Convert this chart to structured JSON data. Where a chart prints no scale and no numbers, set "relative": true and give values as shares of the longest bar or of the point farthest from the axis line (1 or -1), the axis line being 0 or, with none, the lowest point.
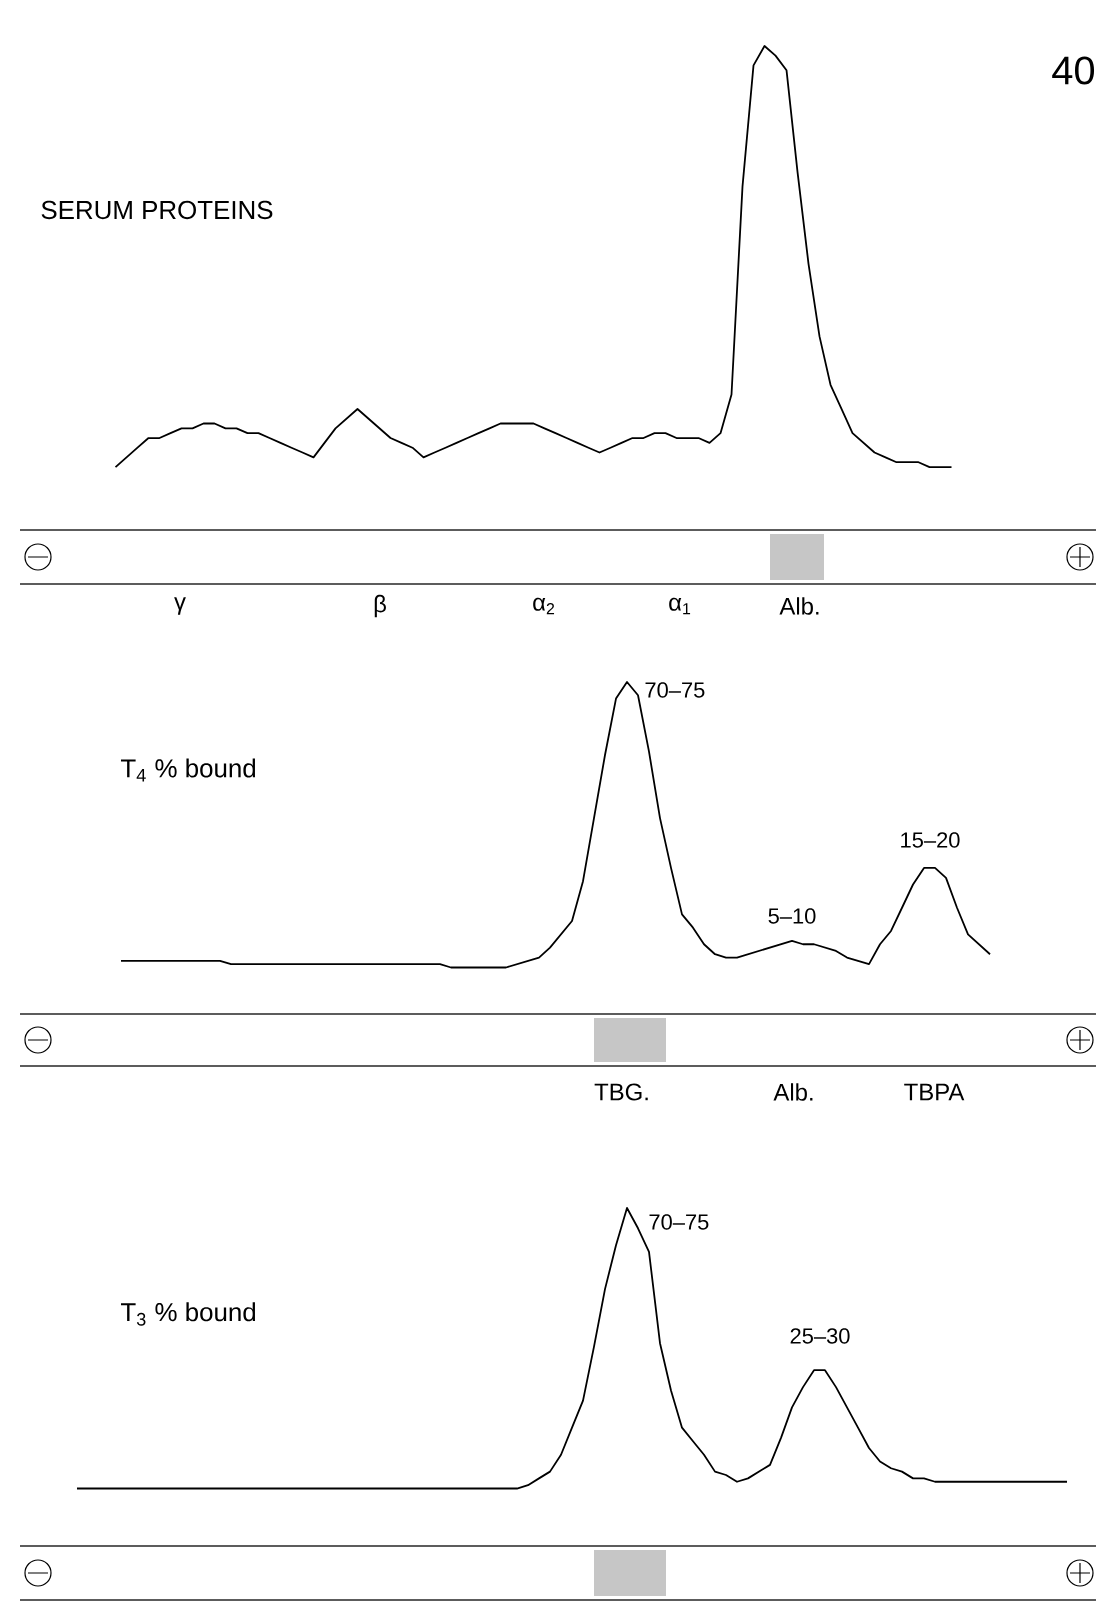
{
  "chart_data": [
    {
      "type": "line",
      "title": "SERUM PROTEINS",
      "relative": true,
      "categories": [
        null,
        null,
        null,
        null,
        null,
        null,
        null,
        null,
        null,
        null,
        null,
        null,
        null,
        null,
        null,
        null,
        null,
        null,
        null,
        null,
        null,
        null,
        null,
        null,
        null,
        null,
        null,
        null,
        null,
        null,
        null,
        null,
        null,
        null,
        null,
        null,
        null,
        null,
        null,
        null,
        null,
        null,
        null,
        null,
        null,
        null,
        null,
        null,
        null,
        null,
        null,
        null,
        null,
        null,
        null,
        null,
        null,
        null,
        null,
        null,
        null,
        null,
        null,
        null,
        null,
        null,
        null,
        null,
        null,
        null,
        null,
        null,
        null,
        null,
        null,
        null,
        null
      ],
      "series": [
        {
          "color": "#000000",
          "values": [
            0.13,
            0.15,
            0.17,
            0.19,
            0.19,
            0.2,
            0.21,
            0.21,
            0.22,
            0.22,
            0.21,
            0.21,
            0.2,
            0.2,
            0.19,
            0.18,
            0.17,
            0.16,
            0.15,
            0.18,
            0.21,
            0.23,
            0.25,
            0.23,
            0.21,
            0.19,
            0.18,
            0.17,
            0.15,
            0.16,
            0.17,
            0.18,
            0.19,
            0.2,
            0.21,
            0.22,
            0.22,
            0.22,
            0.22,
            0.21,
            0.2,
            0.19,
            0.18,
            0.17,
            0.16,
            0.17,
            0.18,
            0.19,
            0.19,
            0.2,
            0.2,
            0.19,
            0.19,
            0.19,
            0.18,
            0.2,
            0.28,
            0.71,
            0.96,
            1,
            0.98,
            0.95,
            0.74,
            0.55,
            0.4,
            0.3,
            0.25,
            0.2,
            0.18,
            0.16,
            0.15,
            0.14,
            0.14,
            0.14,
            0.13,
            0.13,
            0.13
          ]
        }
      ],
      "annotations": [
        "40",
        "γ",
        "β",
        "α$_{2}$",
        "α$_{1}$",
        "Alb."
      ]
    },
    {
      "type": "line",
      "title": "T$_{4}$  % bound",
      "relative": true,
      "categories": [
        null,
        null,
        null,
        null,
        null,
        null,
        null,
        null,
        null,
        null,
        null,
        null,
        null,
        null,
        null,
        null,
        null,
        null,
        null,
        null,
        null,
        null,
        null,
        null,
        null,
        null,
        null,
        null,
        null,
        null,
        null,
        null,
        null,
        null,
        null,
        null,
        null,
        null,
        null,
        null,
        null,
        null,
        null,
        null,
        null,
        null,
        null,
        null,
        null,
        null,
        null,
        null,
        null,
        null,
        null,
        null,
        null,
        null,
        null,
        null,
        null,
        null,
        null,
        null,
        null,
        null,
        null,
        null,
        null,
        null,
        null,
        null,
        null,
        null,
        null,
        null,
        null,
        null,
        null,
        null
      ],
      "series": [
        {
          "color": "#000000",
          "values": [
            0.16,
            0.16,
            0.16,
            0.16,
            0.16,
            0.16,
            0.16,
            0.16,
            0.16,
            0.16,
            0.15,
            0.15,
            0.15,
            0.15,
            0.15,
            0.15,
            0.15,
            0.15,
            0.15,
            0.15,
            0.15,
            0.15,
            0.15,
            0.15,
            0.15,
            0.15,
            0.15,
            0.15,
            0.15,
            0.15,
            0.14,
            0.14,
            0.14,
            0.14,
            0.14,
            0.14,
            0.15,
            0.16,
            0.17,
            0.2,
            0.24,
            0.28,
            0.4,
            0.59,
            0.78,
            0.95,
            1,
            0.96,
            0.79,
            0.59,
            0.44,
            0.3,
            0.26,
            0.21,
            0.18,
            0.17,
            0.17,
            0.18,
            0.19,
            0.2,
            0.21,
            0.22,
            0.21,
            0.21,
            0.2,
            0.19,
            0.17,
            0.16,
            0.15,
            0.21,
            0.25,
            0.32,
            0.39,
            0.44,
            0.44,
            0.41,
            0.32,
            0.24,
            0.21,
            0.18
          ]
        }
      ],
      "annotations": [
        "70–75",
        "5–10",
        "15–20",
        "TBG.",
        "Alb.",
        "TBPA"
      ]
    },
    {
      "type": "line",
      "title": "T$_{3}$  % bound",
      "relative": true,
      "categories": [
        null,
        null,
        null,
        null,
        null,
        null,
        null,
        null,
        null,
        null,
        null,
        null,
        null,
        null,
        null,
        null,
        null,
        null,
        null,
        null,
        null,
        null,
        null,
        null,
        null,
        null,
        null,
        null,
        null,
        null,
        null,
        null,
        null,
        null,
        null,
        null,
        null,
        null,
        null,
        null,
        null,
        null,
        null,
        null,
        null,
        null,
        null,
        null,
        null,
        null,
        null,
        null,
        null,
        null,
        null,
        null,
        null,
        null,
        null,
        null,
        null,
        null,
        null,
        null,
        null,
        null,
        null,
        null,
        null,
        null,
        null,
        null,
        null,
        null,
        null,
        null,
        null,
        null,
        null,
        null,
        null,
        null,
        null,
        null,
        null,
        null,
        null,
        null,
        null,
        null,
        null
      ],
      "series": [
        {
          "color": "#000000",
          "values": [
            0.17,
            0.17,
            0.17,
            0.17,
            0.17,
            0.17,
            0.17,
            0.17,
            0.17,
            0.17,
            0.17,
            0.17,
            0.17,
            0.17,
            0.17,
            0.17,
            0.17,
            0.17,
            0.17,
            0.17,
            0.17,
            0.17,
            0.17,
            0.17,
            0.17,
            0.17,
            0.17,
            0.17,
            0.17,
            0.17,
            0.17,
            0.17,
            0.17,
            0.17,
            0.17,
            0.17,
            0.17,
            0.17,
            0.17,
            0.17,
            0.17,
            0.18,
            0.2,
            0.22,
            0.27,
            0.35,
            0.43,
            0.59,
            0.76,
            0.89,
            1,
            0.94,
            0.87,
            0.6,
            0.46,
            0.35,
            0.31,
            0.27,
            0.22,
            0.21,
            0.19,
            0.2,
            0.22,
            0.24,
            0.32,
            0.41,
            0.47,
            0.52,
            0.52,
            0.47,
            0.41,
            0.35,
            0.29,
            0.25,
            0.23,
            0.22,
            0.2,
            0.2,
            0.19,
            0.19,
            0.19,
            0.19,
            0.19,
            0.19,
            0.19,
            0.19,
            0.19,
            0.19,
            0.19,
            0.19,
            0.19
          ]
        }
      ],
      "annotations": [
        "70–75",
        "25–30"
      ]
    }
  ]
}
